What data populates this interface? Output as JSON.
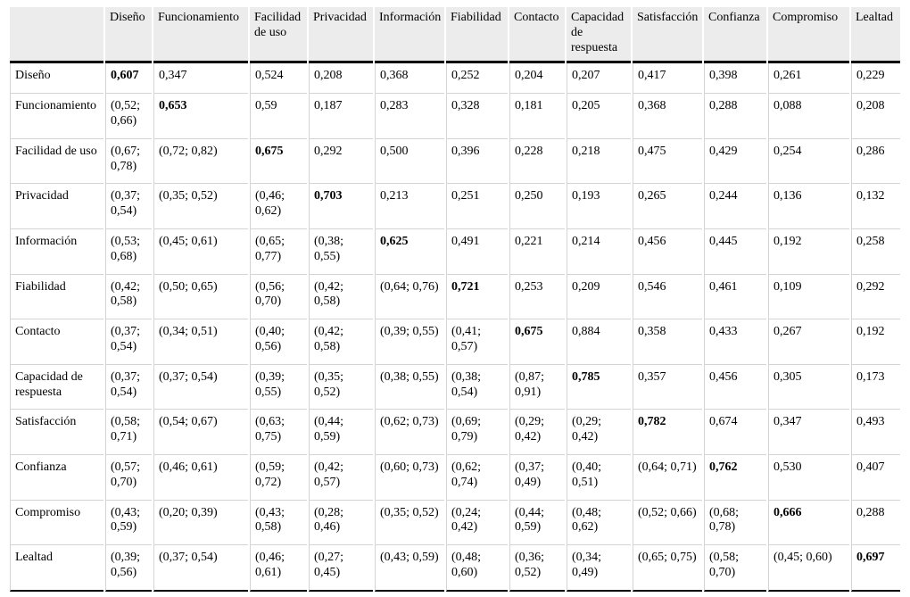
{
  "table": {
    "corner": "",
    "diagonal_bold": true,
    "columns": [
      "Diseño",
      "Funcionamiento",
      "Facilidad de uso",
      "Privacidad",
      "Información",
      "Fiabilidad",
      "Contacto",
      "Capacidad de respuesta",
      "Satisfacción",
      "Confianza",
      "Compromiso",
      "Lealtad"
    ],
    "rows": [
      {
        "label": "Diseño",
        "cells": [
          "0,607",
          "0,347",
          "0,524",
          "0,208",
          "0,368",
          "0,252",
          "0,204",
          "0,207",
          "0,417",
          "0,398",
          "0,261",
          "0,229"
        ]
      },
      {
        "label": "Funcionamiento",
        "cells": [
          "(0,52; 0,66)",
          "0,653",
          "0,59",
          "0,187",
          "0,283",
          "0,328",
          "0,181",
          "0,205",
          "0,368",
          "0,288",
          "0,088",
          "0,208"
        ]
      },
      {
        "label": "Facilidad de uso",
        "cells": [
          "(0,67; 0,78)",
          "(0,72; 0,82)",
          "0,675",
          "0,292",
          "0,500",
          "0,396",
          "0,228",
          "0,218",
          "0,475",
          "0,429",
          "0,254",
          "0,286"
        ]
      },
      {
        "label": "Privacidad",
        "cells": [
          "(0,37; 0,54)",
          "(0,35; 0,52)",
          "(0,46; 0,62)",
          "0,703",
          "0,213",
          "0,251",
          "0,250",
          "0,193",
          "0,265",
          "0,244",
          "0,136",
          "0,132"
        ]
      },
      {
        "label": "Información",
        "cells": [
          "(0,53; 0,68)",
          "(0,45; 0,61)",
          "(0,65; 0,77)",
          "(0,38; 0,55)",
          "0,625",
          "0,491",
          "0,221",
          "0,214",
          "0,456",
          "0,445",
          "0,192",
          "0,258"
        ]
      },
      {
        "label": "Fiabilidad",
        "cells": [
          "(0,42; 0,58)",
          "(0,50; 0,65)",
          "(0,56; 0,70)",
          "(0,42; 0,58)",
          "(0,64; 0,76)",
          "0,721",
          "0,253",
          "0,209",
          "0,546",
          "0,461",
          "0,109",
          "0,292"
        ]
      },
      {
        "label": "Contacto",
        "cells": [
          "(0,37; 0,54)",
          "(0,34; 0,51)",
          "(0,40; 0,56)",
          "(0,42; 0,58)",
          "(0,39; 0,55)",
          "(0,41; 0,57)",
          "0,675",
          "0,884",
          "0,358",
          "0,433",
          "0,267",
          "0,192"
        ]
      },
      {
        "label": "Capacidad de respuesta",
        "cells": [
          "(0,37; 0,54)",
          "(0,37; 0,54)",
          "(0,39; 0,55)",
          "(0,35; 0,52)",
          "(0,38; 0,55)",
          "(0,38; 0,54)",
          "(0,87; 0,91)",
          "0,785",
          "0,357",
          "0,456",
          "0,305",
          "0,173"
        ]
      },
      {
        "label": "Satisfacción",
        "cells": [
          "(0,58; 0,71)",
          "(0,54; 0,67)",
          "(0,63; 0,75)",
          "(0,44; 0,59)",
          "(0,62; 0,73)",
          "(0,69; 0,79)",
          "(0,29; 0,42)",
          "(0,29; 0,42)",
          "0,782",
          "0,674",
          "0,347",
          "0,493"
        ]
      },
      {
        "label": "Confianza",
        "cells": [
          "(0,57; 0,70)",
          "(0,46; 0,61)",
          "(0,59; 0,72)",
          "(0,42; 0,57)",
          "(0,60; 0,73)",
          "(0,62; 0,74)",
          "(0,37; 0,49)",
          "(0,40; 0,51)",
          "(0,64; 0,71)",
          "0,762",
          "0,530",
          "0,407"
        ]
      },
      {
        "label": "Compromiso",
        "cells": [
          "(0,43; 0,59)",
          "(0,20; 0,39)",
          "(0,43; 0,58)",
          "(0,28; 0,46)",
          "(0,35; 0,52)",
          "(0,24; 0,42)",
          "(0,44; 0,59)",
          "(0,48; 0,62)",
          "(0,52; 0,66)",
          "(0,68; 0,78)",
          "0,666",
          "0,288"
        ]
      },
      {
        "label": "Lealtad",
        "cells": [
          "(0,39; 0,56)",
          "(0,37; 0,54)",
          "(0,46; 0,61)",
          "(0,27; 0,45)",
          "(0,43; 0,59)",
          "(0,48; 0,60)",
          "(0,36; 0,52)",
          "(0,34; 0,49)",
          "(0,65; 0,75)",
          "(0,58; 0,70)",
          "(0,45; 0,60)",
          "0,697"
        ]
      }
    ],
    "colors": {
      "header_background": "#ececec",
      "grid_line": "#d4d4d4",
      "rule_line": "#000000"
    }
  }
}
